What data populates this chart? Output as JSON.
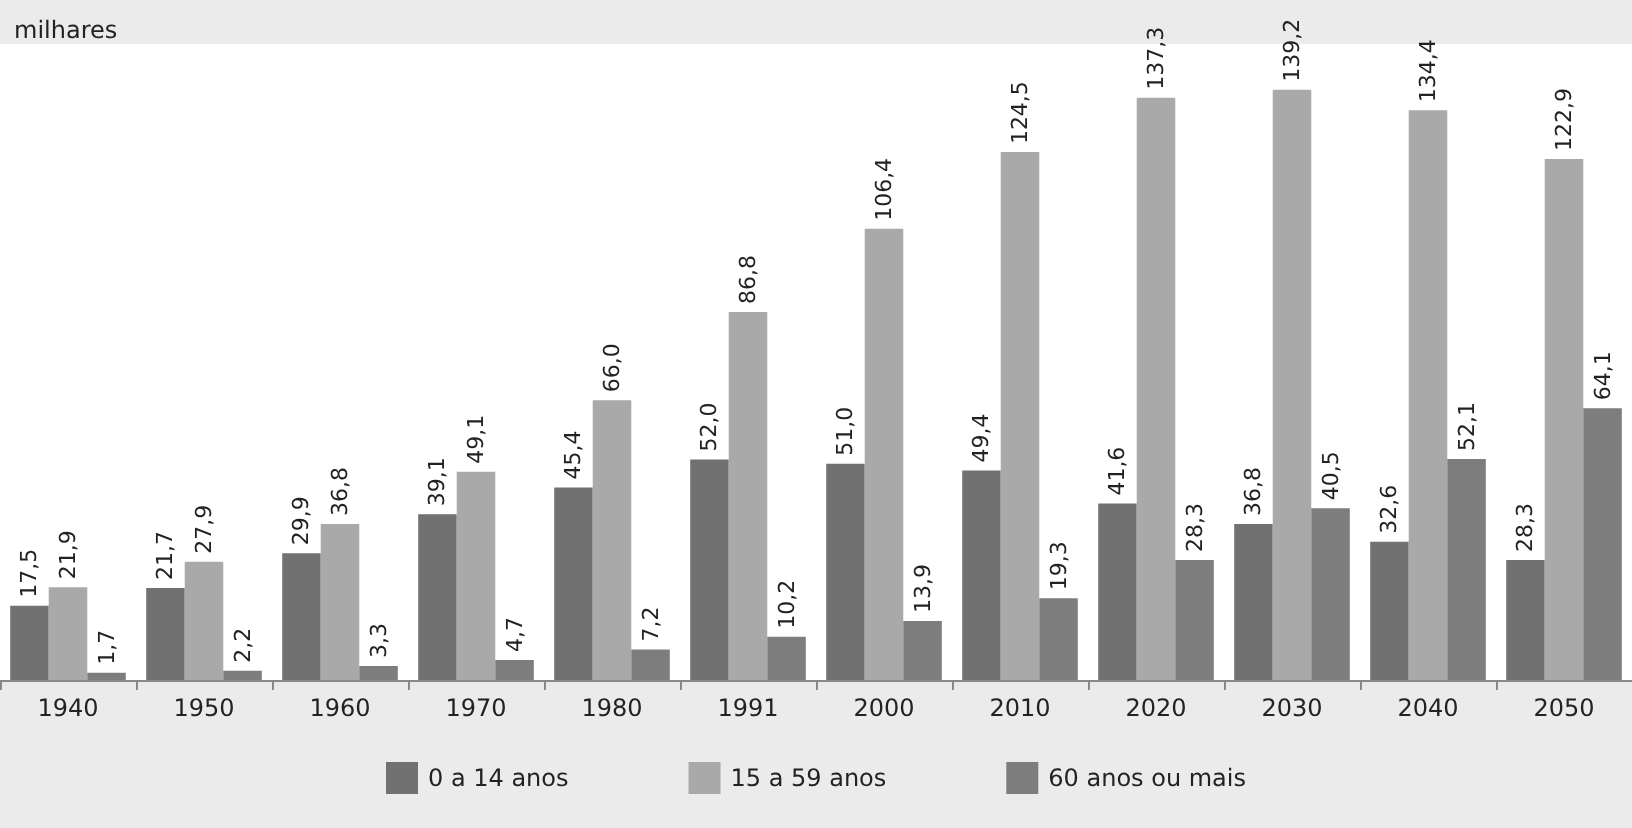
{
  "chart_data": {
    "type": "bar",
    "ylabel": "milhares",
    "categories": [
      "1940",
      "1950",
      "1960",
      "1970",
      "1980",
      "1991",
      "2000",
      "2010",
      "2020",
      "2030",
      "2040",
      "2050"
    ],
    "series": [
      {
        "name": "0 a 14 anos",
        "color": "#717171",
        "values": [
          17.5,
          21.7,
          29.9,
          39.1,
          45.4,
          52.0,
          51.0,
          49.4,
          41.6,
          36.8,
          32.6,
          28.3
        ],
        "value_labels": [
          "17,5",
          "21,7",
          "29,9",
          "39,1",
          "45,4",
          "52,0",
          "51,0",
          "49,4",
          "41,6",
          "36,8",
          "32,6",
          "28,3"
        ]
      },
      {
        "name": "15 a 59 anos",
        "color": "#a9a9a9",
        "values": [
          21.9,
          27.9,
          36.8,
          49.1,
          66.0,
          86.8,
          106.4,
          124.5,
          137.3,
          139.2,
          134.4,
          122.9
        ],
        "value_labels": [
          "21,9",
          "27,9",
          "36,8",
          "49,1",
          "66,0",
          "86,8",
          "106,4",
          "124,5",
          "137,3",
          "139,2",
          "134,4",
          "122,9"
        ]
      },
      {
        "name": "60 anos ou mais",
        "color": "#7d7d7d",
        "values": [
          1.7,
          2.2,
          3.3,
          4.7,
          7.2,
          10.2,
          13.9,
          19.3,
          28.3,
          40.5,
          52.1,
          64.1
        ],
        "value_labels": [
          "1,7",
          "2,2",
          "3,3",
          "4,7",
          "7,2",
          "10,2",
          "13,9",
          "19,3",
          "28,3",
          "40,5",
          "52,1",
          "64,1"
        ]
      }
    ],
    "legend": "bottom"
  }
}
